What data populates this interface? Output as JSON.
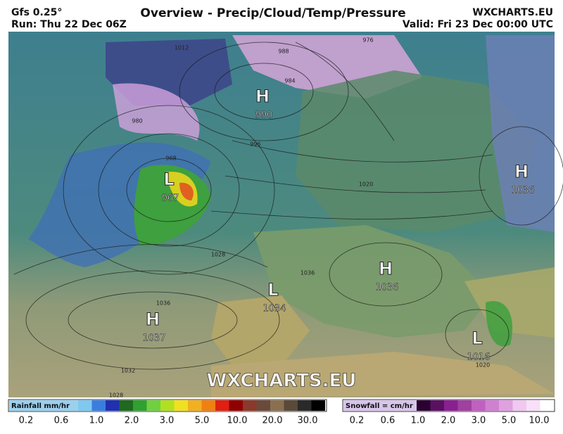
{
  "header": {
    "model": "Gfs 0.25°",
    "run": "Run: Thu 22 Dec 06Z",
    "title": "Overview - Precip/Cloud/Temp/Pressure",
    "site": "WXCHARTS.EU",
    "valid": "Valid: Fri 23 Dec 00:00 UTC"
  },
  "pressure_centers": [
    {
      "type": "H",
      "value": "990"
    },
    {
      "type": "L",
      "value": "967"
    },
    {
      "type": "H",
      "value": "1036"
    },
    {
      "type": "H",
      "value": "1036"
    },
    {
      "type": "L",
      "value": "1034"
    },
    {
      "type": "H",
      "value": "1037"
    },
    {
      "type": "L",
      "value": "1016"
    }
  ],
  "isobar_labels": [
    "1012",
    "980",
    "968",
    "976",
    "988",
    "984",
    "996",
    "1028",
    "1036",
    "1036",
    "1032",
    "1028",
    "1020",
    "1020"
  ],
  "watermark": "WXCHARTS.EU",
  "legend": {
    "rainfall": {
      "title": "Rainfall mm/hr",
      "ticks": [
        "0.2",
        "0.6",
        "1.0",
        "2.0",
        "3.0",
        "5.0",
        "10.0",
        "20.0",
        "30.0"
      ]
    },
    "snowfall": {
      "title": "Snowfall = cm/hr",
      "ticks": [
        "0.2",
        "0.6",
        "1.0",
        "2.0",
        "3.0",
        "5.0",
        "10.0"
      ]
    }
  }
}
